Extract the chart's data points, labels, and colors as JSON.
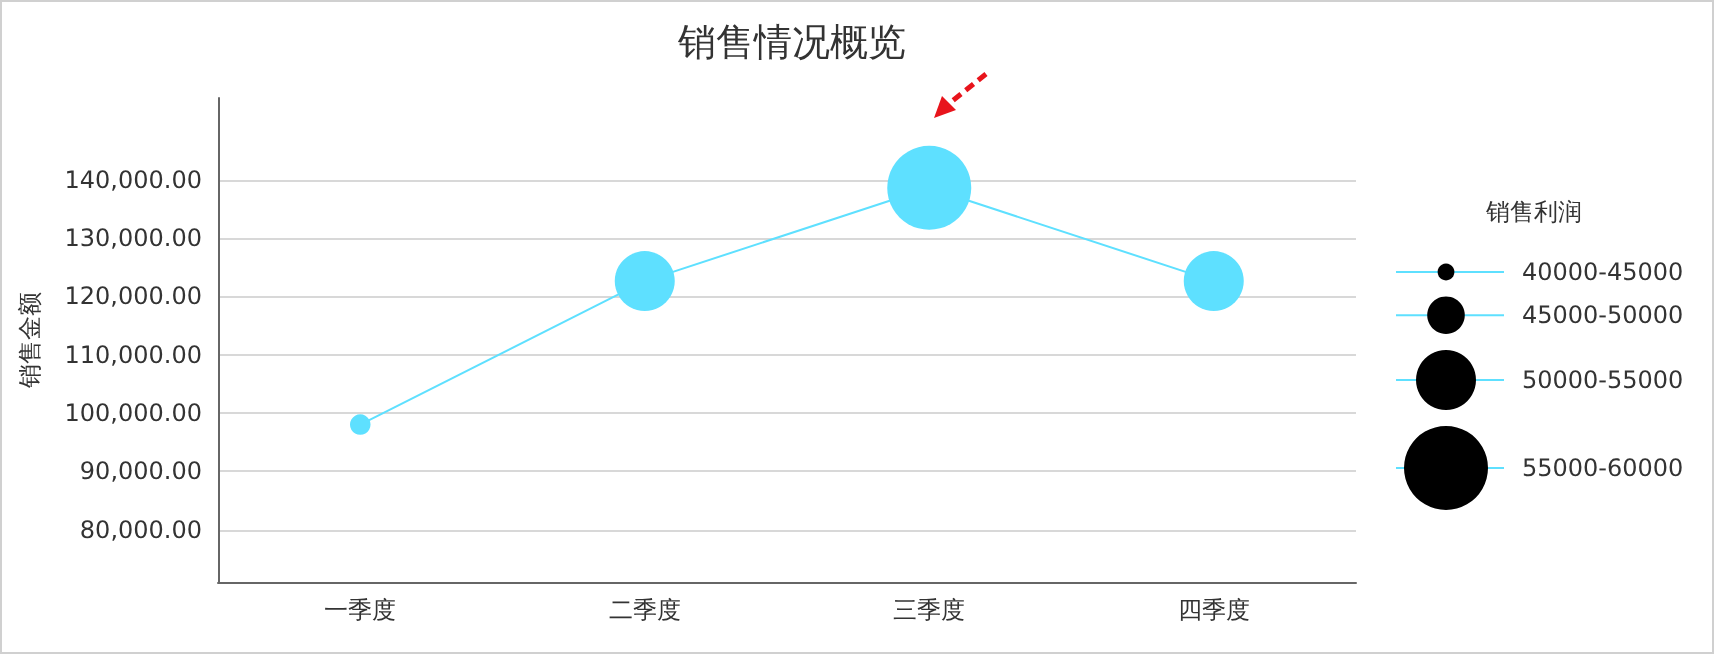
{
  "chart_data": {
    "type": "bubble",
    "title": "销售情况概览",
    "ylabel": "销售金额",
    "legend_title": "销售利润",
    "categories": [
      "一季度",
      "二季度",
      "三季度",
      "四季度"
    ],
    "series": [
      {
        "type": "line",
        "color": "#5ee0ff",
        "values": [
          98000,
          122600,
          138600,
          122600
        ]
      },
      {
        "color": "#5ee0ff",
        "values": [
          98000,
          122600,
          138600,
          122600
        ],
        "sizes": [
          0.06,
          0.51,
          1,
          0.51
        ]
      }
    ],
    "size_legend": [
      {
        "value": 0.04,
        "label": "40000-45000"
      },
      {
        "value": 0.2,
        "label": "45000-50000"
      },
      {
        "value": 0.51,
        "label": "50000-55000"
      },
      {
        "value": 1,
        "label": "55000-60000"
      }
    ],
    "ylim": [
      71000,
      154000
    ],
    "yticks": [
      {
        "value": 80000,
        "label": "80,000.00"
      },
      {
        "value": 90000,
        "label": "90,000.00"
      },
      {
        "value": 100000,
        "label": "100,000.00"
      },
      {
        "value": 110000,
        "label": "110,000.00"
      },
      {
        "value": 120000,
        "label": "120,000.00"
      },
      {
        "value": 130000,
        "label": "130,000.00"
      },
      {
        "value": 140000,
        "label": "140,000.00"
      }
    ],
    "grid": "y"
  }
}
